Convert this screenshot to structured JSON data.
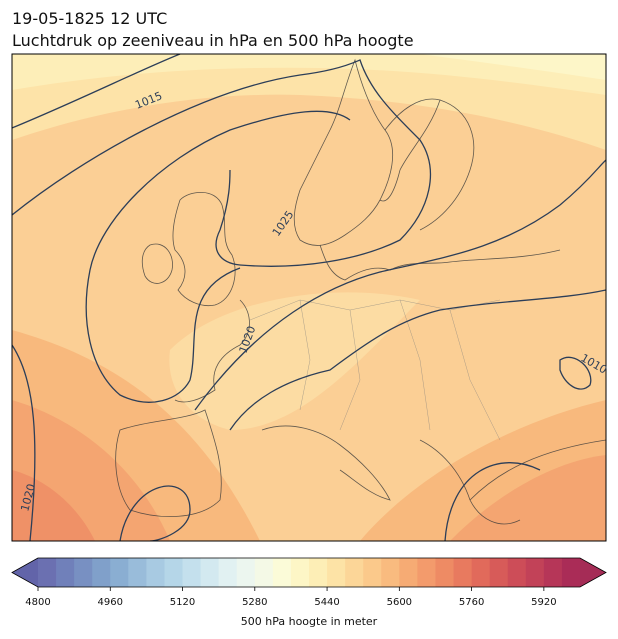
{
  "header": {
    "title": "19-05-1825 12 UTC",
    "subtitle": "Luchtdruk op zeeniveau in hPa en 500 hPa hoogte"
  },
  "map": {
    "contour_labels": [
      "1015",
      "1025",
      "1020",
      "1020",
      "1010"
    ]
  },
  "colorbar": {
    "label": "500 hPa hoogte in meter",
    "min": 4800,
    "max": 6000,
    "ticks": [
      4800,
      4960,
      5120,
      5280,
      5440,
      5600,
      5760,
      5920
    ],
    "colors": [
      "#6b70b1",
      "#7080ba",
      "#7890c2",
      "#80a0ca",
      "#8aaed2",
      "#99bcda",
      "#a8cae2",
      "#b5d6e8",
      "#c4e0ed",
      "#d3e9f0",
      "#e1f1f2",
      "#ecf6ef",
      "#f4f9e6",
      "#fbfbd8",
      "#fdf6c6",
      "#fdeeb6",
      "#fde3a6",
      "#fcd698",
      "#fbc98b",
      "#f9bb7f",
      "#f6ab74",
      "#f39b6c",
      "#ee8b64",
      "#e87a5f",
      "#e16a5b",
      "#d75b59",
      "#cd4d58",
      "#c24258",
      "#b63658",
      "#aa2c57"
    ],
    "extend_colors": [
      "#6264a9",
      "#a52c56"
    ]
  }
}
